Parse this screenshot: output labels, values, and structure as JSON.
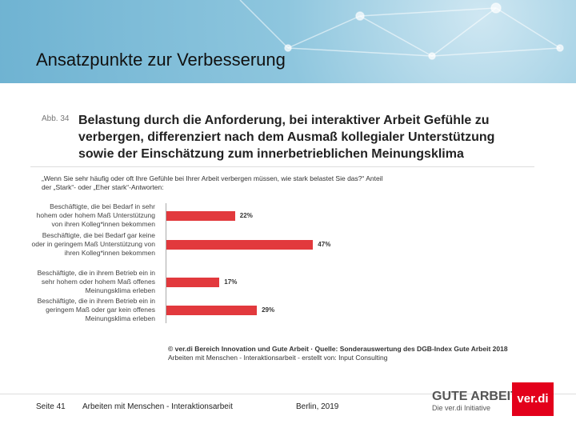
{
  "slide": {
    "title": "Ansatzpunkte zur Verbesserung",
    "page": "Seite 41",
    "topic": "Arbeiten mit Menschen - Interaktionsarbeit",
    "date": "Berlin, 2019"
  },
  "chart_data": {
    "type": "bar",
    "orientation": "horizontal",
    "figure_label": "Abb. 34",
    "title": "Belastung durch die Anforderung, bei interaktiver Arbeit Gefühle zu verbergen, differenziert nach dem Ausmaß kollegialer Unterstützung sowie der Einschätzung zum innerbetrieblichen Meinungsklima",
    "subtitle": "„Wenn Sie sehr häufig oder oft Ihre Gefühle bei Ihrer Arbeit verbergen müssen, wie stark belastet Sie das?“ Anteil der „Stark“- oder „Eher stark“-Antworten:",
    "categories": [
      "Beschäftigte, die bei Bedarf in sehr hohem oder hohem Maß Unterstützung von ihren Kolleg*innen bekommen",
      "Beschäftigte, die bei Bedarf gar keine oder in geringem Maß Unterstützung von ihren Kolleg*innen bekommen",
      "Beschäftigte, die in ihrem Betrieb ein in sehr hohem oder hohem Maß offenes Meinungsklima erleben",
      "Beschäftigte, die in ihrem Betrieb ein in geringem Maß oder gar kein offenes Meinungsklima erleben"
    ],
    "values": [
      22,
      47,
      17,
      29
    ],
    "value_labels": [
      "22%",
      "47%",
      "17%",
      "29%"
    ],
    "color": "#e2393d",
    "source": [
      "© ver.di Bereich Innovation und Gute Arbeit · Quelle: Sonderauswertung des DGB-Index Gute Arbeit 2018",
      "Arbeiten mit Menschen - Interaktionsarbeit - erstellt von: Input Consulting"
    ]
  },
  "logos": {
    "gute_arbeit": "GUTE ARBEIT",
    "initiative": "Die ver.di Initiative",
    "verdi": "ver.di"
  }
}
